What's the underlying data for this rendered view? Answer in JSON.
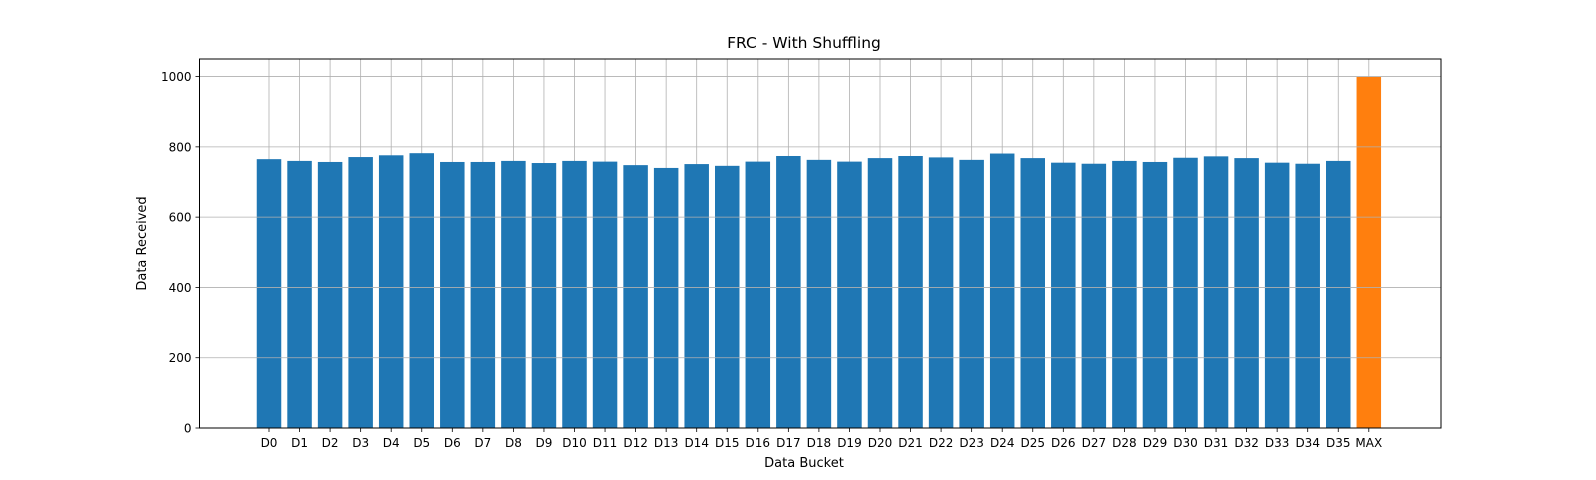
{
  "chart_data": {
    "type": "bar",
    "title": "FRC - With Shuffling",
    "xlabel": "Data Bucket",
    "ylabel": "Data Received",
    "categories": [
      "D0",
      "D1",
      "D2",
      "D3",
      "D4",
      "D5",
      "D6",
      "D7",
      "D8",
      "D9",
      "D10",
      "D11",
      "D12",
      "D13",
      "D14",
      "D15",
      "D16",
      "D17",
      "D18",
      "D19",
      "D20",
      "D21",
      "D22",
      "D23",
      "D24",
      "D25",
      "D26",
      "D27",
      "D28",
      "D29",
      "D30",
      "D31",
      "D32",
      "D33",
      "D34",
      "D35",
      "MAX"
    ],
    "values": [
      765,
      760,
      757,
      771,
      776,
      782,
      757,
      757,
      760,
      754,
      760,
      758,
      748,
      740,
      751,
      746,
      758,
      774,
      763,
      758,
      768,
      774,
      770,
      763,
      781,
      768,
      755,
      752,
      760,
      757,
      769,
      773,
      768,
      755,
      752,
      760,
      1000
    ],
    "highlight_category": "MAX",
    "colors": {
      "default": "#1f77b4",
      "highlight": "#ff7f0e"
    },
    "ylim": [
      0,
      1050
    ],
    "yticks": [
      0,
      200,
      400,
      600,
      800,
      1000
    ],
    "grid": true
  }
}
